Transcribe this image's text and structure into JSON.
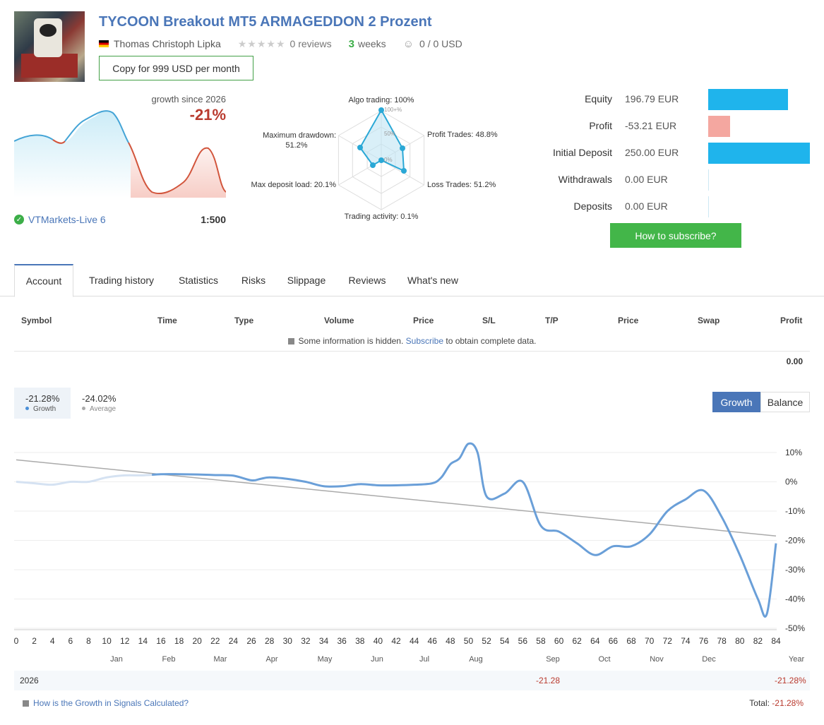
{
  "header": {
    "title": "TYCOON Breakout MT5 ARMAGEDDON 2 Prozent",
    "author": "Thomas Christoph Lipka",
    "reviews": "0 reviews",
    "weeks_num": "3",
    "weeks_label": "weeks",
    "subscribers": "0 / 0 USD",
    "copy_button": "Copy for 999 USD per month"
  },
  "growth": {
    "label": "growth since 2026",
    "value": "-21%",
    "broker": "VTMarkets-Live 6",
    "leverage": "1:500"
  },
  "radar": {
    "algo": "Algo trading: 100%",
    "profit_trades": "Profit Trades: 48.8%",
    "loss_trades": "Loss Trades: 51.2%",
    "activity": "Trading activity: 0.1%",
    "deposit_load": "Max deposit load: 20.1%",
    "drawdown_1": "Maximum drawdown:",
    "drawdown_2": "51.2%",
    "tick_100": "100+%",
    "tick_50": "50%",
    "tick_0": "0%"
  },
  "stats": [
    {
      "label": "Equity",
      "value": "196.79 EUR",
      "bar_fraction": 0.787,
      "color": "#1fb4ec"
    },
    {
      "label": "Profit",
      "value": "-53.21 EUR",
      "bar_fraction": 0.213,
      "color": "#f4a7a0"
    },
    {
      "label": "Initial Deposit",
      "value": "250.00 EUR",
      "bar_fraction": 1.0,
      "color": "#1fb4ec"
    },
    {
      "label": "Withdrawals",
      "value": "0.00 EUR",
      "bar_fraction": 0,
      "color": "#1fb4ec"
    },
    {
      "label": "Deposits",
      "value": "0.00 EUR",
      "bar_fraction": 0,
      "color": "#1fb4ec"
    }
  ],
  "subscribe_button": "How to subscribe?",
  "tabs": [
    "Account",
    "Trading history",
    "Statistics",
    "Risks",
    "Slippage",
    "Reviews",
    "What's new"
  ],
  "table": {
    "headers": [
      "Symbol",
      "Time",
      "Type",
      "Volume",
      "Price",
      "S/L",
      "T/P",
      "Price",
      "Swap",
      "Profit"
    ],
    "note_before": "Some information is hidden.",
    "note_link": "Subscribe",
    "note_after": "to obtain complete data.",
    "total": "0.00"
  },
  "chart_legend": {
    "growth_value": "-21.28%",
    "growth_name": "Growth",
    "average_value": "-24.02%",
    "average_name": "Average",
    "btn_growth": "Growth",
    "btn_balance": "Balance"
  },
  "chart_data": {
    "type": "line",
    "ylim": [
      -50,
      10
    ],
    "y_ticks": [
      "10%",
      "0%",
      "-10%",
      "-20%",
      "-30%",
      "-40%",
      "-50%"
    ],
    "x_ticks": [
      "0",
      "2",
      "4",
      "6",
      "8",
      "10",
      "12",
      "14",
      "16",
      "18",
      "20",
      "22",
      "24",
      "26",
      "28",
      "30",
      "32",
      "34",
      "36",
      "38",
      "40",
      "42",
      "44",
      "46",
      "48",
      "50",
      "52",
      "54",
      "56",
      "58",
      "60",
      "62",
      "64",
      "66",
      "68",
      "70",
      "72",
      "74",
      "76",
      "78",
      "80",
      "82",
      "84"
    ],
    "month_labels": [
      "Jan",
      "Feb",
      "Mar",
      "Apr",
      "May",
      "Jun",
      "Jul",
      "Aug",
      "Sep",
      "Oct",
      "Nov",
      "Dec",
      "Year"
    ],
    "series": [
      {
        "name": "Growth",
        "color": "#6a9fd8",
        "x": [
          0,
          2,
          4,
          6,
          8,
          10,
          12,
          14,
          16,
          18,
          20,
          22,
          24,
          26,
          27,
          28,
          30,
          32,
          34,
          36,
          38,
          40,
          42,
          44,
          46,
          47,
          48,
          49,
          50,
          51,
          52,
          54,
          56,
          58,
          60,
          62,
          64,
          66,
          68,
          70,
          72,
          74,
          76,
          78,
          80,
          82,
          83,
          84
        ],
        "values": [
          0,
          -0.5,
          -1,
          0,
          0,
          1.5,
          2.2,
          2.2,
          2.6,
          2.6,
          2.5,
          2.3,
          2.1,
          0.5,
          1,
          1.5,
          1,
          0,
          -1.5,
          -1.5,
          -0.8,
          -1.2,
          -1.2,
          -1,
          -0.5,
          1.5,
          6,
          8,
          13,
          10,
          -5,
          -4,
          0,
          -15,
          -17,
          -21,
          -25,
          -22,
          -22,
          -18,
          -10,
          -6,
          -3,
          -12,
          -25,
          -40,
          -45,
          -21
        ]
      },
      {
        "name": "Average",
        "color": "#aaaaaa",
        "x": [
          0,
          84
        ],
        "values": [
          7.5,
          -18.5
        ]
      }
    ]
  },
  "year_row": {
    "year": "2026",
    "sep": "-21.28",
    "year_total": "-21.28%"
  },
  "footer": {
    "link": "How is the Growth in Signals Calculated?",
    "total_label": "Total:",
    "total_value": "-21.28%"
  }
}
